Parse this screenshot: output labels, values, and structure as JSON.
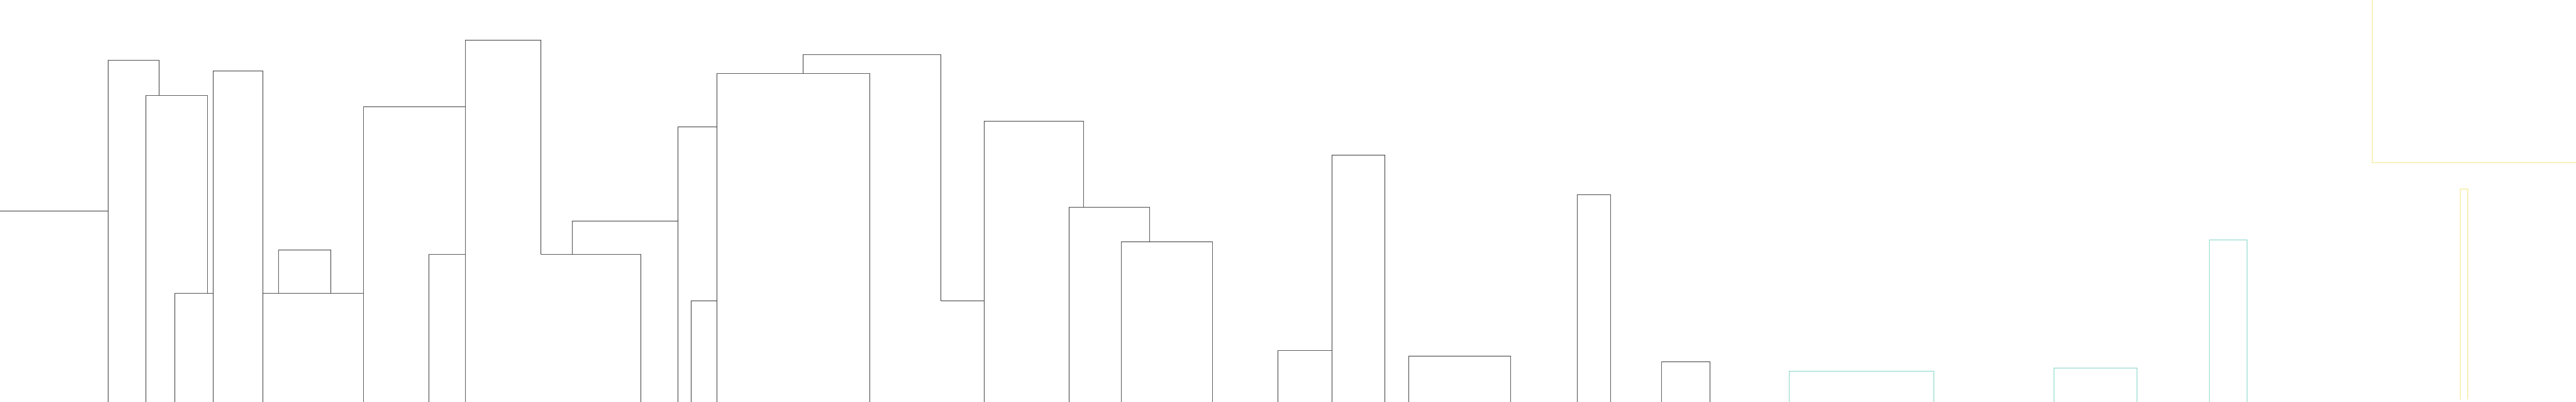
{
  "scene": {
    "background": "#ffffff",
    "palette": {
      "outline": "#3a3a3a",
      "accent_teal": "#7fd4c6",
      "accent_yellow": "#f2e57a"
    }
  }
}
